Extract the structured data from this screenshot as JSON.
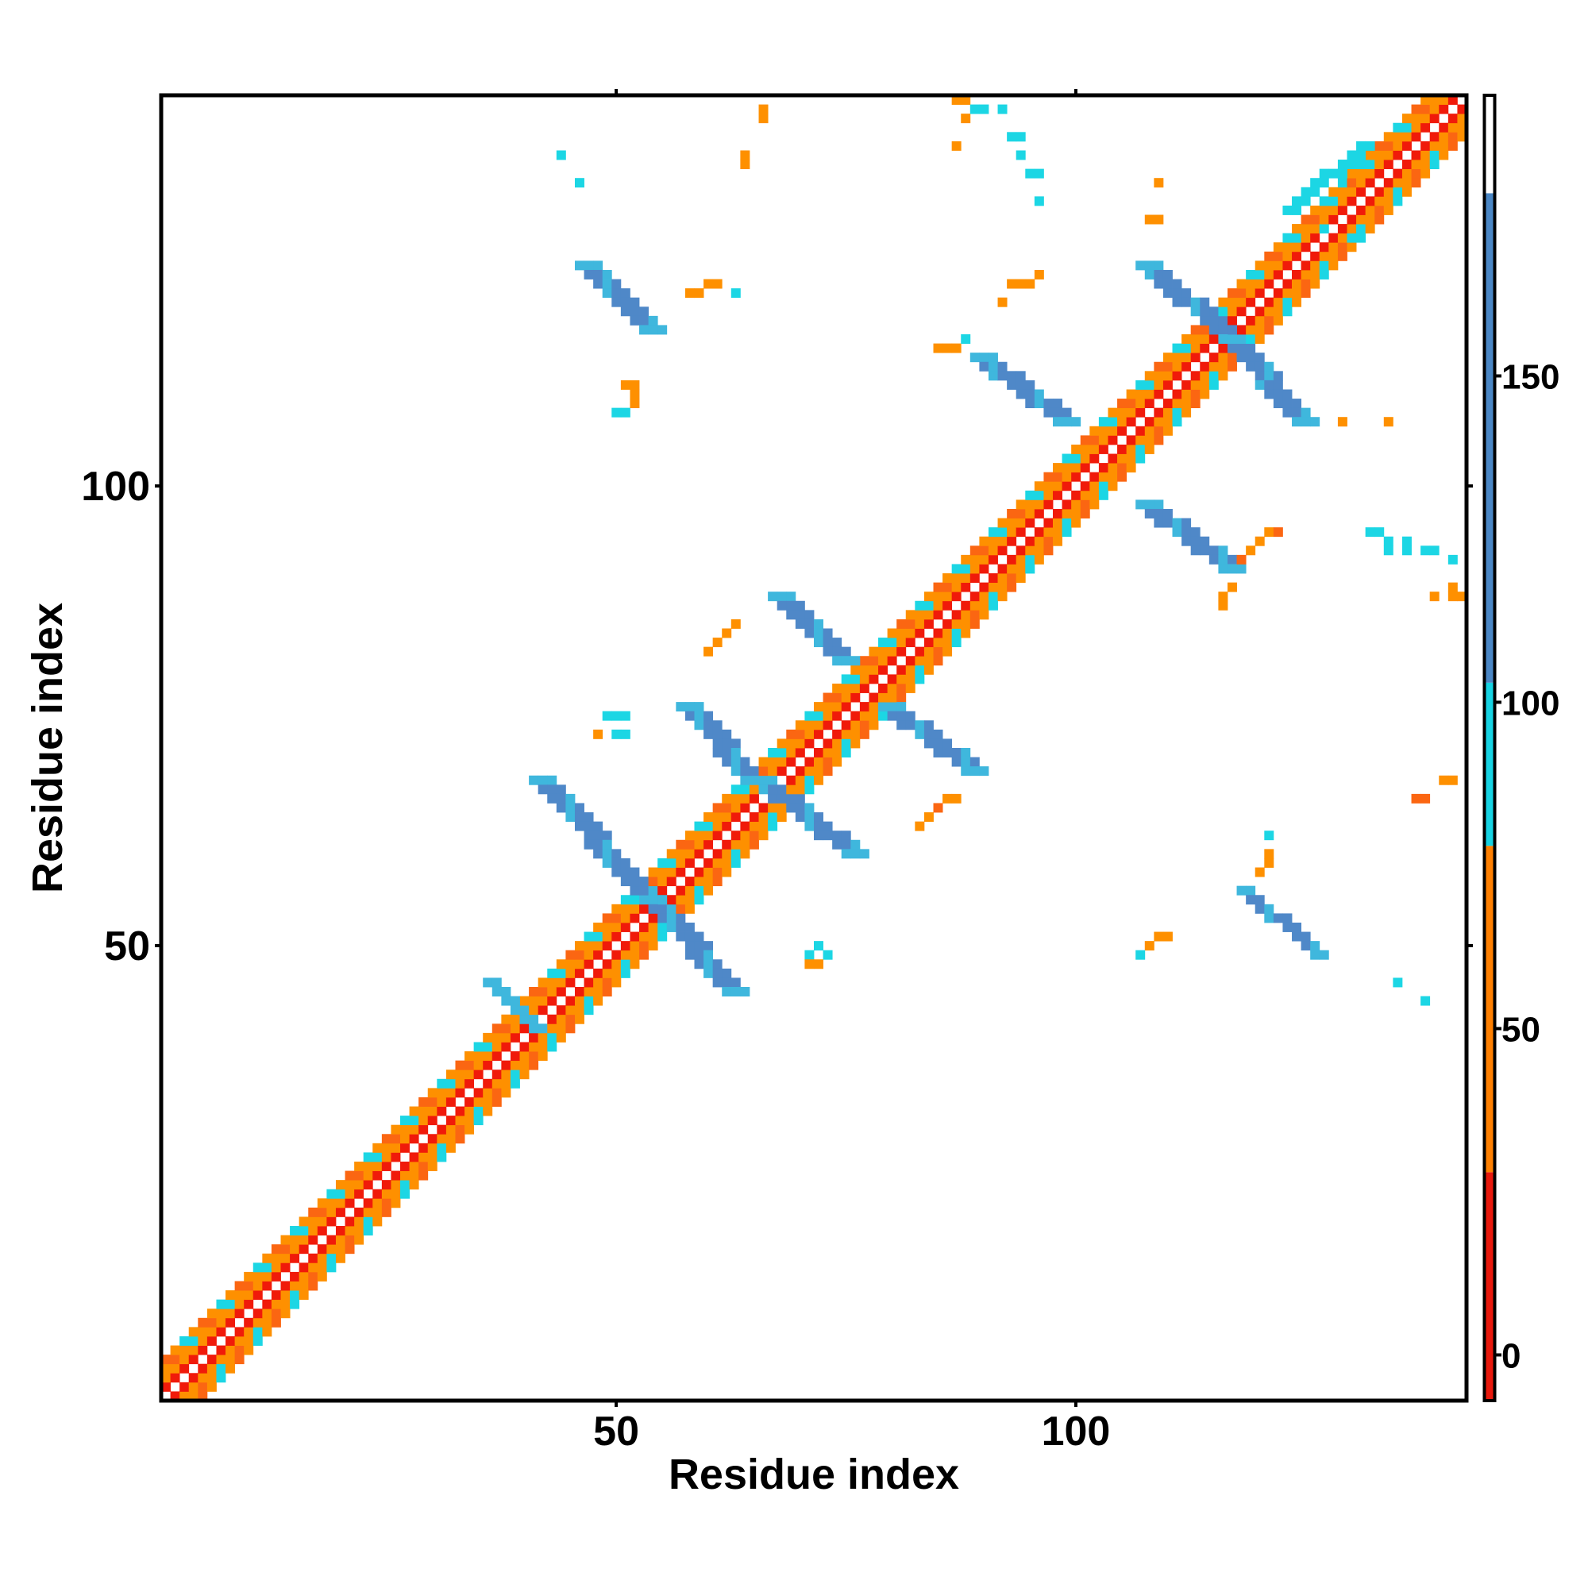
{
  "chart_data": {
    "type": "heatmap",
    "title": "",
    "xlabel": "Residue index",
    "ylabel": "Residue index",
    "xlim": [
      0.5,
      142.5
    ],
    "ylim": [
      0.5,
      142.5
    ],
    "x_ticks": [
      50,
      100
    ],
    "y_ticks": [
      50,
      100
    ],
    "colorbar": {
      "ticks": [
        0,
        50,
        100,
        150
      ],
      "range": [
        -7,
        193
      ],
      "bands": [
        {
          "from": -7,
          "to": 28,
          "color": "#e8180c"
        },
        {
          "from": 28,
          "to": 78,
          "color": "#fe7f00"
        },
        {
          "from": 78,
          "to": 103,
          "color": "#16d3e3"
        },
        {
          "from": 103,
          "to": 178,
          "color": "#4a86c4"
        },
        {
          "from": 178,
          "to": 193,
          "color": "#ffffff"
        }
      ]
    },
    "colors": {
      "1": "#f01a0a",
      "2": "#fb6612",
      "3": "#fe9000",
      "4": "#1cd6e4",
      "5": "#3fb7dd",
      "6": "#4f88c8"
    },
    "band_color_codes": [
      1,
      2,
      3,
      4,
      5,
      6
    ],
    "diagonal": {
      "from": 1,
      "to": 142,
      "near_offsets": [
        1,
        2
      ],
      "far_offsets": [
        3,
        4
      ]
    },
    "strands": [
      {
        "x": [
          36,
          41
        ],
        "y": [
          46,
          41
        ],
        "width": 2,
        "color": 5
      },
      {
        "x": [
          41,
          53
        ],
        "y": [
          68,
          55
        ],
        "width": 3,
        "color": 6
      },
      {
        "x": [
          53,
          62
        ],
        "y": [
          55,
          45
        ],
        "width": 3,
        "color": 6
      },
      {
        "x": [
          57,
          64
        ],
        "y": [
          76,
          68
        ],
        "width": 3,
        "color": 6
      },
      {
        "x": [
          65,
          75
        ],
        "y": [
          68,
          60
        ],
        "width": 3,
        "color": 6
      },
      {
        "x": [
          67,
          74
        ],
        "y": [
          88,
          81
        ],
        "width": 3,
        "color": 6
      },
      {
        "x": [
          79,
          88
        ],
        "y": [
          76,
          69
        ],
        "width": 3,
        "color": 6
      },
      {
        "x": [
          46,
          53
        ],
        "y": [
          124,
          117
        ],
        "width": 3,
        "color": 6
      },
      {
        "x": [
          89,
          98
        ],
        "y": [
          114,
          107
        ],
        "width": 3,
        "color": 6
      },
      {
        "x": [
          107,
          116
        ],
        "y": [
          124,
          116
        ],
        "width": 3,
        "color": 6
      },
      {
        "x": [
          116,
          124
        ],
        "y": [
          116,
          107
        ],
        "width": 3,
        "color": 6
      },
      {
        "x": [
          107,
          116
        ],
        "y": [
          98,
          91
        ],
        "width": 3,
        "color": 6
      },
      {
        "x": [
          118,
          126
        ],
        "y": [
          56,
          49
        ],
        "width": 2,
        "color": 6
      },
      {
        "x": [
          123,
          131
        ],
        "y": [
          130,
          137
        ],
        "width": 2,
        "color": 4
      }
    ],
    "dots": [
      [
        44,
        136,
        4
      ],
      [
        46,
        133,
        4
      ],
      [
        50,
        108,
        4
      ],
      [
        51,
        108,
        4
      ],
      [
        52,
        109,
        3
      ],
      [
        52,
        110,
        3
      ],
      [
        51,
        111,
        3
      ],
      [
        52,
        111,
        3
      ],
      [
        58,
        121,
        3
      ],
      [
        59,
        121,
        3
      ],
      [
        60,
        122,
        3
      ],
      [
        61,
        122,
        3
      ],
      [
        63,
        121,
        4
      ],
      [
        66,
        141,
        3
      ],
      [
        66,
        140,
        3
      ],
      [
        64,
        136,
        3
      ],
      [
        64,
        135,
        3
      ],
      [
        87,
        142,
        3
      ],
      [
        88,
        142,
        3
      ],
      [
        88,
        140,
        3
      ],
      [
        89,
        141,
        4
      ],
      [
        90,
        141,
        4
      ],
      [
        92,
        141,
        4
      ],
      [
        87,
        137,
        3
      ],
      [
        93,
        138,
        4
      ],
      [
        94,
        138,
        4
      ],
      [
        94,
        136,
        4
      ],
      [
        95,
        134,
        4
      ],
      [
        96,
        134,
        4
      ],
      [
        96,
        131,
        4
      ],
      [
        93,
        122,
        3
      ],
      [
        94,
        122,
        3
      ],
      [
        95,
        122,
        3
      ],
      [
        96,
        123,
        3
      ],
      [
        92,
        120,
        3
      ],
      [
        85,
        115,
        3
      ],
      [
        86,
        115,
        3
      ],
      [
        87,
        115,
        3
      ],
      [
        88,
        116,
        4
      ],
      [
        120,
        94,
        3
      ],
      [
        121,
        95,
        3
      ],
      [
        122,
        95,
        2
      ],
      [
        119,
        93,
        3
      ],
      [
        118,
        92,
        2
      ],
      [
        117,
        89,
        3
      ],
      [
        116,
        88,
        3
      ],
      [
        116,
        87,
        3
      ],
      [
        132,
        95,
        4
      ],
      [
        133,
        95,
        4
      ],
      [
        134,
        94,
        4
      ],
      [
        134,
        93,
        4
      ],
      [
        136,
        94,
        4
      ],
      [
        136,
        93,
        4
      ],
      [
        138,
        93,
        4
      ],
      [
        139,
        93,
        4
      ],
      [
        141,
        92,
        4
      ],
      [
        141,
        89,
        3
      ],
      [
        141,
        88,
        3
      ],
      [
        142,
        88,
        3
      ],
      [
        139,
        88,
        3
      ],
      [
        140,
        68,
        3
      ],
      [
        141,
        68,
        3
      ],
      [
        137,
        66,
        2
      ],
      [
        138,
        66,
        2
      ],
      [
        121,
        62,
        4
      ],
      [
        121,
        60,
        3
      ],
      [
        121,
        59,
        3
      ],
      [
        120,
        58,
        3
      ],
      [
        109,
        51,
        3
      ],
      [
        110,
        51,
        3
      ],
      [
        108,
        50,
        3
      ],
      [
        107,
        49,
        4
      ],
      [
        72,
        50,
        4
      ],
      [
        71,
        49,
        4
      ],
      [
        73,
        49,
        4
      ],
      [
        71,
        48,
        3
      ],
      [
        72,
        48,
        3
      ],
      [
        49,
        75,
        4
      ],
      [
        50,
        75,
        4
      ],
      [
        51,
        75,
        4
      ],
      [
        50,
        73,
        4
      ],
      [
        51,
        73,
        4
      ],
      [
        48,
        73,
        3
      ],
      [
        83,
        63,
        3
      ],
      [
        84,
        64,
        3
      ],
      [
        85,
        65,
        2
      ],
      [
        86,
        66,
        3
      ],
      [
        87,
        66,
        3
      ],
      [
        63,
        85,
        3
      ],
      [
        62,
        84,
        3
      ],
      [
        61,
        83,
        3
      ],
      [
        60,
        82,
        3
      ],
      [
        129,
        107,
        3
      ],
      [
        134,
        107,
        3
      ],
      [
        108,
        129,
        3
      ],
      [
        109,
        129,
        3
      ],
      [
        109,
        133,
        3
      ],
      [
        130,
        127,
        4
      ],
      [
        127,
        128,
        4
      ],
      [
        129,
        133,
        4
      ],
      [
        135,
        46,
        4
      ],
      [
        138,
        44,
        4
      ]
    ]
  }
}
